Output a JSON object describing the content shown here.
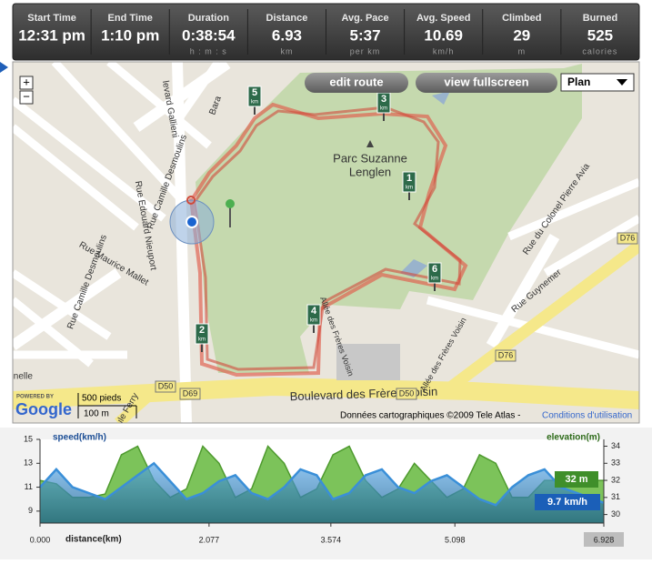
{
  "header": {
    "stats": [
      {
        "label": "Start Time",
        "value": "12:31 pm"
      },
      {
        "label": "End Time",
        "value": "1:10 pm"
      },
      {
        "label": "Duration",
        "value": "0:38:54",
        "unit": "h : m : s"
      },
      {
        "label": "Distance",
        "value": "6.93",
        "unit": "km"
      },
      {
        "label": "Avg. Pace",
        "value": "5:37",
        "unit": "per km"
      },
      {
        "label": "Avg. Speed",
        "value": "10.69",
        "unit": "km/h"
      },
      {
        "label": "Climbed",
        "value": "29",
        "unit": "m"
      },
      {
        "label": "Burned",
        "value": "525",
        "unit": "calories"
      }
    ]
  },
  "map": {
    "buttons": [
      "edit route",
      "view fullscreen"
    ],
    "map_type": "Plan",
    "zoom": [
      "+",
      "−"
    ],
    "park_label": [
      "Parc Suzanne",
      "Lenglen"
    ],
    "km_markers": [
      "1",
      "2",
      "3",
      "4",
      "5",
      "6"
    ],
    "km_unit": "km",
    "streets": [
      "Bara",
      "levard Gallieni",
      "Rue Camille Desmoulins",
      "Rue Camille Desmoulins",
      "Rue Edouard Nieuport",
      "Rue Maurice Mallet",
      "Rue du Colonel Pierre Avia",
      "Rue Guynemer",
      "Boulevard des Frères Voisin",
      "Allée des Frères Voisin",
      "Allée des Frères Voisin",
      "Grenelle",
      "ule Ferry",
      "D50",
      "D50",
      "D69",
      "D76",
      "D76"
    ],
    "powered_by": "POWERED BY",
    "google": "Google",
    "scale": [
      "500 pieds",
      "100 m"
    ],
    "copyright": "Données cartographiques ©2009 Tele Atlas -",
    "terms": "Conditions d'utilisation"
  },
  "chart_data": {
    "type": "area",
    "y_label": "speed(km/h)",
    "y2_label": "elevation(m)",
    "x_label": "distance(km)",
    "x": [
      0,
      0.2,
      0.4,
      0.6,
      0.8,
      1.0,
      1.2,
      1.4,
      1.6,
      1.8,
      2.0,
      2.2,
      2.4,
      2.6,
      2.8,
      3.0,
      3.2,
      3.4,
      3.6,
      3.8,
      4.0,
      4.2,
      4.4,
      4.6,
      4.8,
      5.0,
      5.2,
      5.4,
      5.6,
      5.8,
      6.0,
      6.2,
      6.4,
      6.6,
      6.8,
      6.928
    ],
    "series": [
      {
        "name": "elevation(m)",
        "axis": "y2",
        "color": "#7cc35a",
        "values": [
          32,
          31.8,
          31,
          31,
          31.2,
          33.5,
          34,
          32,
          31,
          31.5,
          34,
          33,
          31,
          31.5,
          34,
          33,
          31,
          31.5,
          33.5,
          34,
          32,
          31,
          31.5,
          33,
          32,
          31,
          31.5,
          33.5,
          33,
          31,
          31,
          32,
          32,
          32,
          32,
          32
        ]
      },
      {
        "name": "speed(km/h)",
        "color": "#3a8fd8",
        "values": [
          11,
          12.5,
          11,
          10.5,
          10,
          11,
          12,
          13,
          11.5,
          10,
          10.5,
          11.5,
          12,
          10.5,
          10,
          11,
          12.5,
          12,
          10,
          10.5,
          12,
          12.5,
          11,
          10.5,
          11.5,
          12,
          11,
          10,
          9.5,
          11,
          12,
          12.5,
          11,
          10.5,
          10,
          9.7
        ]
      }
    ],
    "xlim": [
      0,
      6.928
    ],
    "xticks": [
      {
        "value": 0,
        "label": "0.000"
      },
      2.077,
      3.574,
      5.098,
      6.928
    ],
    "ylim": [
      8,
      15
    ],
    "yticks": [
      9,
      11,
      13,
      15
    ],
    "y2lim": [
      29.5,
      34.4
    ],
    "y2ticks": [
      30,
      31,
      32,
      33,
      34
    ],
    "end_labels": [
      "32 m",
      "9.7 km/h"
    ]
  }
}
